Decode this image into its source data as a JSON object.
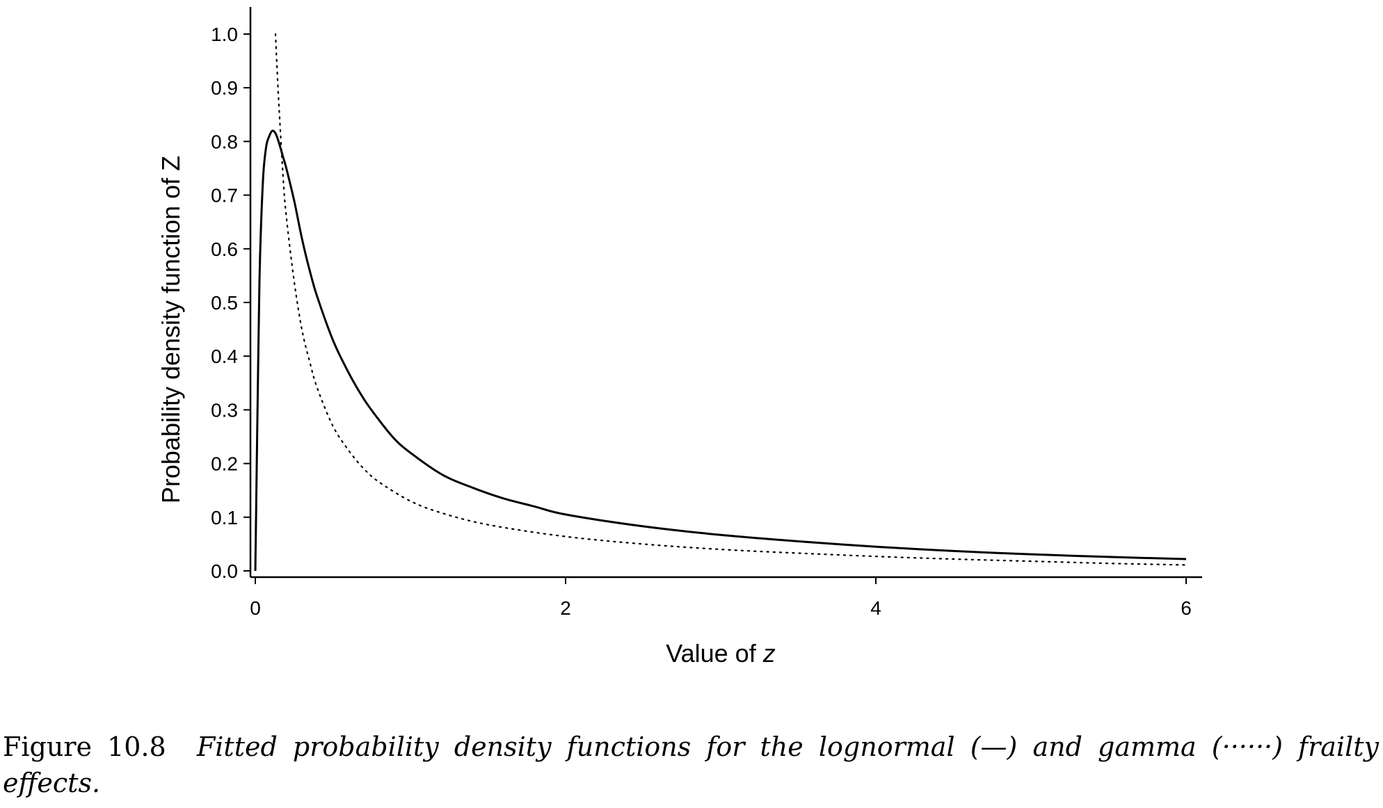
{
  "chart_data": {
    "type": "line",
    "xlabel_prefix": "Value of ",
    "xlabel_var": "z",
    "ylabel": "Probability density function of Z",
    "xlim": [
      0,
      6
    ],
    "ylim": [
      0,
      1.0
    ],
    "x_ticks": [
      "0",
      "2",
      "4",
      "6"
    ],
    "y_ticks": [
      "0.0",
      "0.1",
      "0.2",
      "0.3",
      "0.4",
      "0.5",
      "0.6",
      "0.7",
      "0.8",
      "0.9",
      "1.0"
    ],
    "grid": false,
    "series": [
      {
        "style": "solid",
        "x": [
          0.0,
          0.01,
          0.02,
          0.03,
          0.05,
          0.07,
          0.09,
          0.11,
          0.13,
          0.15,
          0.18,
          0.2,
          0.25,
          0.3,
          0.35,
          0.4,
          0.5,
          0.6,
          0.7,
          0.8,
          0.9,
          1.0,
          1.2,
          1.4,
          1.6,
          1.8,
          2.0,
          2.5,
          3.0,
          3.5,
          4.0,
          4.5,
          5.0,
          5.5,
          6.0
        ],
        "y": [
          0.0,
          0.21,
          0.42,
          0.58,
          0.73,
          0.79,
          0.81,
          0.82,
          0.815,
          0.8,
          0.77,
          0.75,
          0.69,
          0.62,
          0.56,
          0.51,
          0.43,
          0.37,
          0.32,
          0.28,
          0.245,
          0.22,
          0.18,
          0.155,
          0.135,
          0.12,
          0.105,
          0.083,
          0.067,
          0.055,
          0.045,
          0.037,
          0.031,
          0.026,
          0.022
        ]
      },
      {
        "style": "dotted",
        "x": [
          0.13,
          0.15,
          0.18,
          0.2,
          0.25,
          0.3,
          0.35,
          0.4,
          0.5,
          0.6,
          0.7,
          0.8,
          1.0,
          1.2,
          1.5,
          2.0,
          2.5,
          3.0,
          3.5,
          4.0,
          4.5,
          5.0,
          5.5,
          6.0
        ],
        "y": [
          1.0,
          0.88,
          0.73,
          0.66,
          0.54,
          0.45,
          0.39,
          0.34,
          0.27,
          0.225,
          0.19,
          0.165,
          0.13,
          0.108,
          0.086,
          0.064,
          0.05,
          0.04,
          0.033,
          0.027,
          0.022,
          0.018,
          0.014,
          0.011
        ]
      }
    ]
  },
  "caption": {
    "label": "Figure 10.8",
    "text": "Fitted probability density functions for the lognormal (—) and gamma (······) frailty effects."
  }
}
